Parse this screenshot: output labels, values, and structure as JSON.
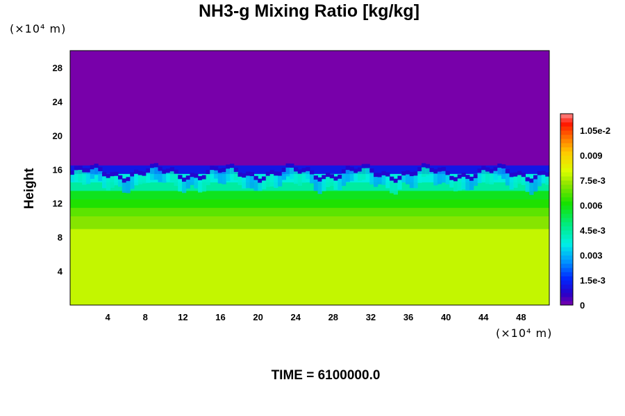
{
  "chart_data": {
    "type": "heatmap",
    "title": "NH3-g Mixing Ratio [kg/kg]",
    "ylabel": "Height",
    "x_unit": "(×10⁴ m)",
    "y_unit": "(×10⁴ m)",
    "xlim": [
      0,
      51
    ],
    "ylim": [
      0,
      30
    ],
    "x_ticks": [
      "4",
      "8",
      "12",
      "16",
      "20",
      "24",
      "28",
      "32",
      "36",
      "40",
      "44",
      "48"
    ],
    "y_ticks": [
      "4",
      "8",
      "12",
      "16",
      "20",
      "24",
      "28"
    ],
    "colorbar": {
      "min": 0,
      "max": 0.0115,
      "tick_labels": [
        "0",
        "1.5e-3",
        "0.003",
        "4.5e-3",
        "0.006",
        "7.5e-3",
        "0.009",
        "1.05e-2"
      ],
      "tick_values": [
        0,
        0.0015,
        0.003,
        0.0045,
        0.006,
        0.0075,
        0.009,
        0.0105
      ]
    },
    "vertical_profile": [
      {
        "height_min": 0,
        "height_max": 9,
        "value": 0.0078
      },
      {
        "height_min": 9,
        "height_max": 10.5,
        "value": 0.0072
      },
      {
        "height_min": 10.5,
        "height_max": 11.5,
        "value": 0.0068
      },
      {
        "height_min": 11.5,
        "height_max": 12.5,
        "value": 0.0062
      },
      {
        "height_min": 12.5,
        "height_max": 13.5,
        "value": 0.0058
      },
      {
        "height_min": 13.5,
        "height_max": 14.5,
        "value": 0.0045
      },
      {
        "height_min": 14.5,
        "height_max": 15.5,
        "value": 0.0038
      },
      {
        "height_min": 15.5,
        "height_max": 16.5,
        "value": 0.0012
      },
      {
        "height_min": 16.5,
        "height_max": 30,
        "value": 0.0
      }
    ]
  },
  "footer": {
    "time_label": "TIME = 6100000.0"
  }
}
